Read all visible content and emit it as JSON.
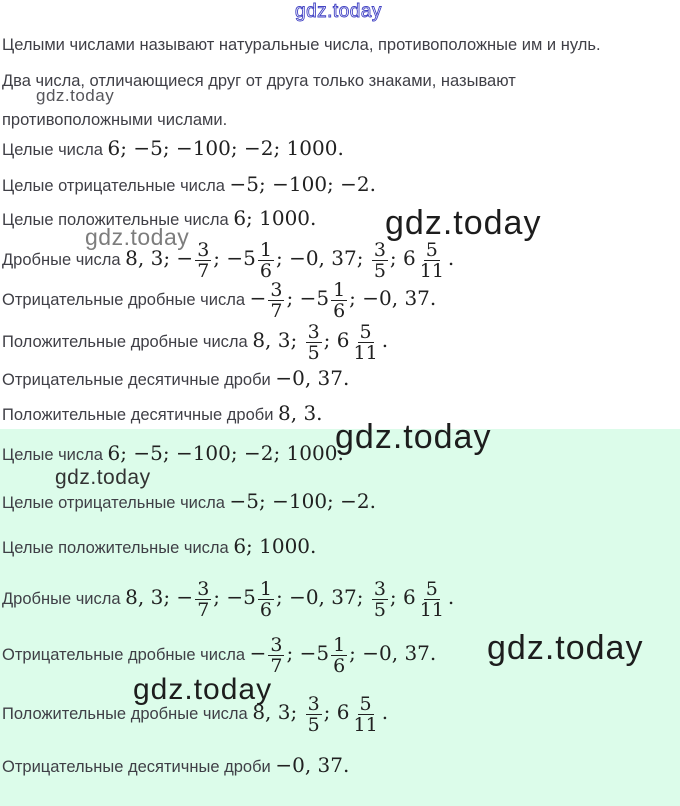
{
  "page": {
    "background": "#ffffff",
    "highlight_background": "#dcfcea",
    "text_color": "#3f3f46",
    "math_color": "#212121",
    "watermark_blue": "#4243c4"
  },
  "watermarks": [
    {
      "text": "gdz.today",
      "style": "outline-blue"
    },
    {
      "text": "gdz.today",
      "style": ""
    },
    {
      "text": "gdz.today",
      "style": ""
    },
    {
      "text": "gdz.today",
      "style": ""
    },
    {
      "text": "gdz.today",
      "style": ""
    },
    {
      "text": "gdz.today",
      "style": ""
    },
    {
      "text": "gdz.today",
      "style": ""
    },
    {
      "text": "gdz.today",
      "style": ""
    }
  ],
  "sections": [
    {
      "name": "definitions-and-examples",
      "lines": [
        {
          "name": "definition-integers",
          "kind": "plain",
          "segments": [
            {
              "type": "text",
              "value": "Целыми числами называют натуральные числа, противоположные им и нуль."
            }
          ]
        },
        {
          "name": "definition-opposites-1",
          "kind": "plain",
          "segments": [
            {
              "type": "text",
              "value": "Два числа, отличающиеся друг от друга только знаками, называют"
            }
          ]
        },
        {
          "name": "definition-opposites-2",
          "kind": "plain",
          "segments": [
            {
              "type": "text",
              "value": "противоположными числами."
            }
          ]
        },
        {
          "name": "integers-line",
          "kind": "plain",
          "segments": [
            {
              "type": "text",
              "value": "Целые числа "
            },
            {
              "type": "math",
              "value": "6; −5; −100; −2; 1000."
            }
          ]
        },
        {
          "name": "negative-integers-line",
          "kind": "plain",
          "segments": [
            {
              "type": "text",
              "value": "Целые отрицательные числа "
            },
            {
              "type": "math",
              "value": "−5; −100; −2."
            }
          ]
        },
        {
          "name": "positive-integers-line",
          "kind": "plain",
          "segments": [
            {
              "type": "text",
              "value": "Целые положительные числа "
            },
            {
              "type": "math",
              "value": "6; 1000."
            }
          ]
        },
        {
          "name": "fractions-line",
          "kind": "frac",
          "segments": [
            {
              "type": "text",
              "value": "Дробные числа "
            },
            {
              "type": "math",
              "value": "8, 3; −"
            },
            {
              "type": "frac",
              "num": "3",
              "den": "7"
            },
            {
              "type": "math",
              "value": "; −5"
            },
            {
              "type": "frac",
              "num": "1",
              "den": "6"
            },
            {
              "type": "math",
              "value": "; −0, 37; "
            },
            {
              "type": "frac",
              "num": "3",
              "den": "5"
            },
            {
              "type": "math",
              "value": "; 6"
            },
            {
              "type": "frac",
              "num": "5",
              "den": "11"
            },
            {
              "type": "math",
              "value": "."
            }
          ]
        },
        {
          "name": "negative-fractions-line",
          "kind": "frac",
          "segments": [
            {
              "type": "text",
              "value": "Отрицательные дробные числа "
            },
            {
              "type": "math",
              "value": "−"
            },
            {
              "type": "frac",
              "num": "3",
              "den": "7"
            },
            {
              "type": "math",
              "value": "; −5"
            },
            {
              "type": "frac",
              "num": "1",
              "den": "6"
            },
            {
              "type": "math",
              "value": "; −0, 37."
            }
          ]
        },
        {
          "name": "positive-fractions-line",
          "kind": "frac",
          "segments": [
            {
              "type": "text",
              "value": "Положительные дробные числа "
            },
            {
              "type": "math",
              "value": "8, 3; "
            },
            {
              "type": "frac",
              "num": "3",
              "den": "5"
            },
            {
              "type": "math",
              "value": "; 6"
            },
            {
              "type": "frac",
              "num": "5",
              "den": "11"
            },
            {
              "type": "math",
              "value": "."
            }
          ]
        },
        {
          "name": "negative-decimals-line",
          "kind": "plain",
          "segments": [
            {
              "type": "text",
              "value": "Отрицательные десятичные дроби "
            },
            {
              "type": "math",
              "value": "−0, 37."
            }
          ]
        },
        {
          "name": "positive-decimals-line",
          "kind": "plain",
          "segments": [
            {
              "type": "text",
              "value": "Положительные десятичные дроби "
            },
            {
              "type": "math",
              "value": "8, 3."
            }
          ]
        }
      ]
    },
    {
      "name": "highlighted-examples",
      "lines": [
        {
          "name": "integers-line-highlighted",
          "kind": "plain",
          "segments": [
            {
              "type": "text",
              "value": "Целые числа "
            },
            {
              "type": "math",
              "value": "6; −5; −100; −2; 1000."
            }
          ]
        },
        {
          "name": "negative-integers-line-highlighted",
          "kind": "plain",
          "segments": [
            {
              "type": "text",
              "value": "Целые отрицательные числа "
            },
            {
              "type": "math",
              "value": "−5; −100; −2."
            }
          ]
        },
        {
          "name": "positive-integers-line-highlighted",
          "kind": "plain",
          "segments": [
            {
              "type": "text",
              "value": "Целые положительные числа "
            },
            {
              "type": "math",
              "value": "6; 1000."
            }
          ]
        },
        {
          "name": "fractions-line-highlighted",
          "kind": "frac",
          "segments": [
            {
              "type": "text",
              "value": "Дробные числа "
            },
            {
              "type": "math",
              "value": "8, 3; −"
            },
            {
              "type": "frac",
              "num": "3",
              "den": "7"
            },
            {
              "type": "math",
              "value": "; −5"
            },
            {
              "type": "frac",
              "num": "1",
              "den": "6"
            },
            {
              "type": "math",
              "value": "; −0, 37; "
            },
            {
              "type": "frac",
              "num": "3",
              "den": "5"
            },
            {
              "type": "math",
              "value": "; 6"
            },
            {
              "type": "frac",
              "num": "5",
              "den": "11"
            },
            {
              "type": "math",
              "value": "."
            }
          ]
        },
        {
          "name": "negative-fractions-line-highlighted",
          "kind": "frac",
          "segments": [
            {
              "type": "text",
              "value": "Отрицательные дробные числа "
            },
            {
              "type": "math",
              "value": "−"
            },
            {
              "type": "frac",
              "num": "3",
              "den": "7"
            },
            {
              "type": "math",
              "value": "; −5"
            },
            {
              "type": "frac",
              "num": "1",
              "den": "6"
            },
            {
              "type": "math",
              "value": "; −0, 37."
            }
          ]
        },
        {
          "name": "positive-fractions-line-highlighted",
          "kind": "frac",
          "segments": [
            {
              "type": "text",
              "value": "Положительные дробные числа "
            },
            {
              "type": "math",
              "value": "8, 3; "
            },
            {
              "type": "frac",
              "num": "3",
              "den": "5"
            },
            {
              "type": "math",
              "value": "; 6"
            },
            {
              "type": "frac",
              "num": "5",
              "den": "11"
            },
            {
              "type": "math",
              "value": "."
            }
          ]
        },
        {
          "name": "negative-decimals-line-highlighted",
          "kind": "plain",
          "segments": [
            {
              "type": "text",
              "value": "Отрицательные десятичные дроби "
            },
            {
              "type": "math",
              "value": "−0, 37."
            }
          ]
        }
      ]
    }
  ]
}
